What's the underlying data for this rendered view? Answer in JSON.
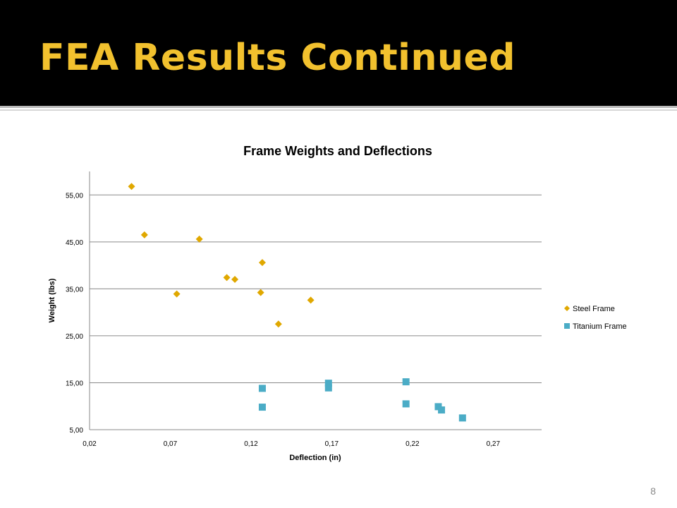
{
  "slide": {
    "title": "FEA Results Continued",
    "number": "8"
  },
  "colors": {
    "header_bg": "#000000",
    "title": "#f2c12e",
    "steel": "#e0a800",
    "titanium": "#4bacc6",
    "gridline": "#8a8a8a"
  },
  "chart_data": {
    "type": "scatter",
    "title": "Frame Weights and Deflections",
    "xlabel": "Deflection (in)",
    "ylabel": "Weight (lbs)",
    "xlim": [
      0.02,
      0.3
    ],
    "ylim": [
      5,
      60
    ],
    "x_ticks": [
      "0,02",
      "0,07",
      "0,12",
      "0,17",
      "0,22",
      "0,27"
    ],
    "y_ticks": [
      "5,00",
      "15,00",
      "25,00",
      "35,00",
      "45,00",
      "55,00"
    ],
    "grid": "horizontal",
    "legend_position": "right",
    "series": [
      {
        "name": "Steel Frame",
        "marker": "diamond",
        "color": "#e0a800",
        "points": [
          {
            "x": 0.046,
            "y": 56.8
          },
          {
            "x": 0.054,
            "y": 46.5
          },
          {
            "x": 0.074,
            "y": 33.9
          },
          {
            "x": 0.088,
            "y": 45.6
          },
          {
            "x": 0.105,
            "y": 37.4
          },
          {
            "x": 0.11,
            "y": 37.0
          },
          {
            "x": 0.126,
            "y": 34.2
          },
          {
            "x": 0.127,
            "y": 40.6
          },
          {
            "x": 0.137,
            "y": 27.5
          },
          {
            "x": 0.157,
            "y": 32.6
          }
        ]
      },
      {
        "name": "Titanium Frame",
        "marker": "square",
        "color": "#4bacc6",
        "points": [
          {
            "x": 0.127,
            "y": 13.8
          },
          {
            "x": 0.127,
            "y": 9.8
          },
          {
            "x": 0.168,
            "y": 14.9
          },
          {
            "x": 0.168,
            "y": 13.9
          },
          {
            "x": 0.216,
            "y": 15.2
          },
          {
            "x": 0.216,
            "y": 10.5
          },
          {
            "x": 0.236,
            "y": 9.9
          },
          {
            "x": 0.238,
            "y": 9.2
          },
          {
            "x": 0.251,
            "y": 7.5
          }
        ]
      }
    ]
  }
}
